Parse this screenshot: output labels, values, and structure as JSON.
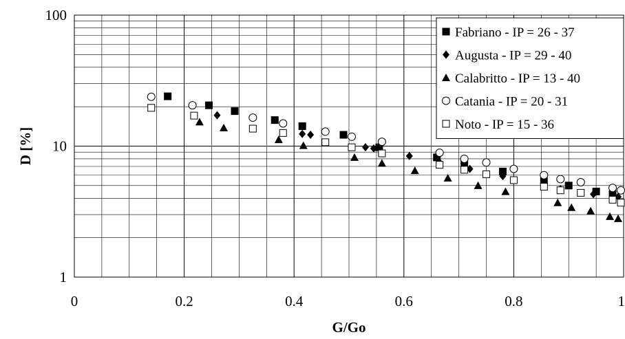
{
  "chart_data": {
    "type": "scatter",
    "xlabel": "G/Go",
    "ylabel": "D [%]",
    "xlim": [
      0,
      1
    ],
    "ylim": [
      1,
      100
    ],
    "yscale": "log",
    "grid": true,
    "legend_position": "top-right",
    "x_ticks": [
      "0",
      "0.2",
      "0.4",
      "0.6",
      "0.8",
      "1"
    ],
    "y_ticks": [
      "1",
      "10",
      "100"
    ],
    "series": [
      {
        "name": "Fabriano - IP = 26 - 37",
        "marker": "filled-square",
        "points": [
          [
            0.17,
            24
          ],
          [
            0.245,
            20.5
          ],
          [
            0.292,
            18.5
          ],
          [
            0.365,
            15.8
          ],
          [
            0.415,
            14.2
          ],
          [
            0.49,
            12.2
          ],
          [
            0.555,
            9.8
          ],
          [
            0.66,
            8.2
          ],
          [
            0.71,
            7.2
          ],
          [
            0.78,
            6.4
          ],
          [
            0.855,
            5.4
          ],
          [
            0.9,
            5.0
          ],
          [
            0.95,
            4.5
          ],
          [
            0.98,
            4.3
          ]
        ]
      },
      {
        "name": "Augusta - IP = 29 - 40",
        "marker": "filled-diamond",
        "points": [
          [
            0.26,
            17.2
          ],
          [
            0.415,
            12.4
          ],
          [
            0.43,
            12.2
          ],
          [
            0.53,
            9.8
          ],
          [
            0.545,
            9.6
          ],
          [
            0.61,
            8.4
          ],
          [
            0.665,
            7.5
          ],
          [
            0.72,
            6.7
          ],
          [
            0.78,
            5.9
          ],
          [
            0.885,
            4.7
          ],
          [
            0.945,
            4.3
          ],
          [
            0.99,
            4.1
          ]
        ]
      },
      {
        "name": "Calabritto - IP = 13 - 40",
        "marker": "filled-triangle",
        "points": [
          [
            0.228,
            15.3
          ],
          [
            0.272,
            13.8
          ],
          [
            0.372,
            11.2
          ],
          [
            0.417,
            10.1
          ],
          [
            0.51,
            8.2
          ],
          [
            0.56,
            7.4
          ],
          [
            0.62,
            6.5
          ],
          [
            0.68,
            5.7
          ],
          [
            0.735,
            5.0
          ],
          [
            0.785,
            4.5
          ],
          [
            0.88,
            3.7
          ],
          [
            0.905,
            3.4
          ],
          [
            0.94,
            3.2
          ],
          [
            0.975,
            2.9
          ],
          [
            0.99,
            2.8
          ]
        ]
      },
      {
        "name": "Catania - IP = 20 - 31",
        "marker": "open-circle",
        "points": [
          [
            0.14,
            23.8
          ],
          [
            0.215,
            20.5
          ],
          [
            0.325,
            16.5
          ],
          [
            0.38,
            14.9
          ],
          [
            0.457,
            12.9
          ],
          [
            0.505,
            11.8
          ],
          [
            0.56,
            10.8
          ],
          [
            0.665,
            8.9
          ],
          [
            0.71,
            8.0
          ],
          [
            0.75,
            7.5
          ],
          [
            0.8,
            6.7
          ],
          [
            0.855,
            6.0
          ],
          [
            0.885,
            5.6
          ],
          [
            0.922,
            5.3
          ],
          [
            0.98,
            4.8
          ],
          [
            0.995,
            4.6
          ]
        ]
      },
      {
        "name": "Noto - IP = 15 - 36",
        "marker": "open-square",
        "points": [
          [
            0.14,
            19.6
          ],
          [
            0.218,
            17.1
          ],
          [
            0.325,
            13.6
          ],
          [
            0.38,
            12.6
          ],
          [
            0.457,
            10.7
          ],
          [
            0.505,
            9.8
          ],
          [
            0.56,
            8.8
          ],
          [
            0.665,
            7.2
          ],
          [
            0.71,
            6.6
          ],
          [
            0.75,
            6.1
          ],
          [
            0.8,
            5.5
          ],
          [
            0.855,
            4.9
          ],
          [
            0.885,
            4.6
          ],
          [
            0.922,
            4.4
          ],
          [
            0.98,
            3.9
          ],
          [
            0.995,
            3.7
          ]
        ]
      }
    ]
  }
}
